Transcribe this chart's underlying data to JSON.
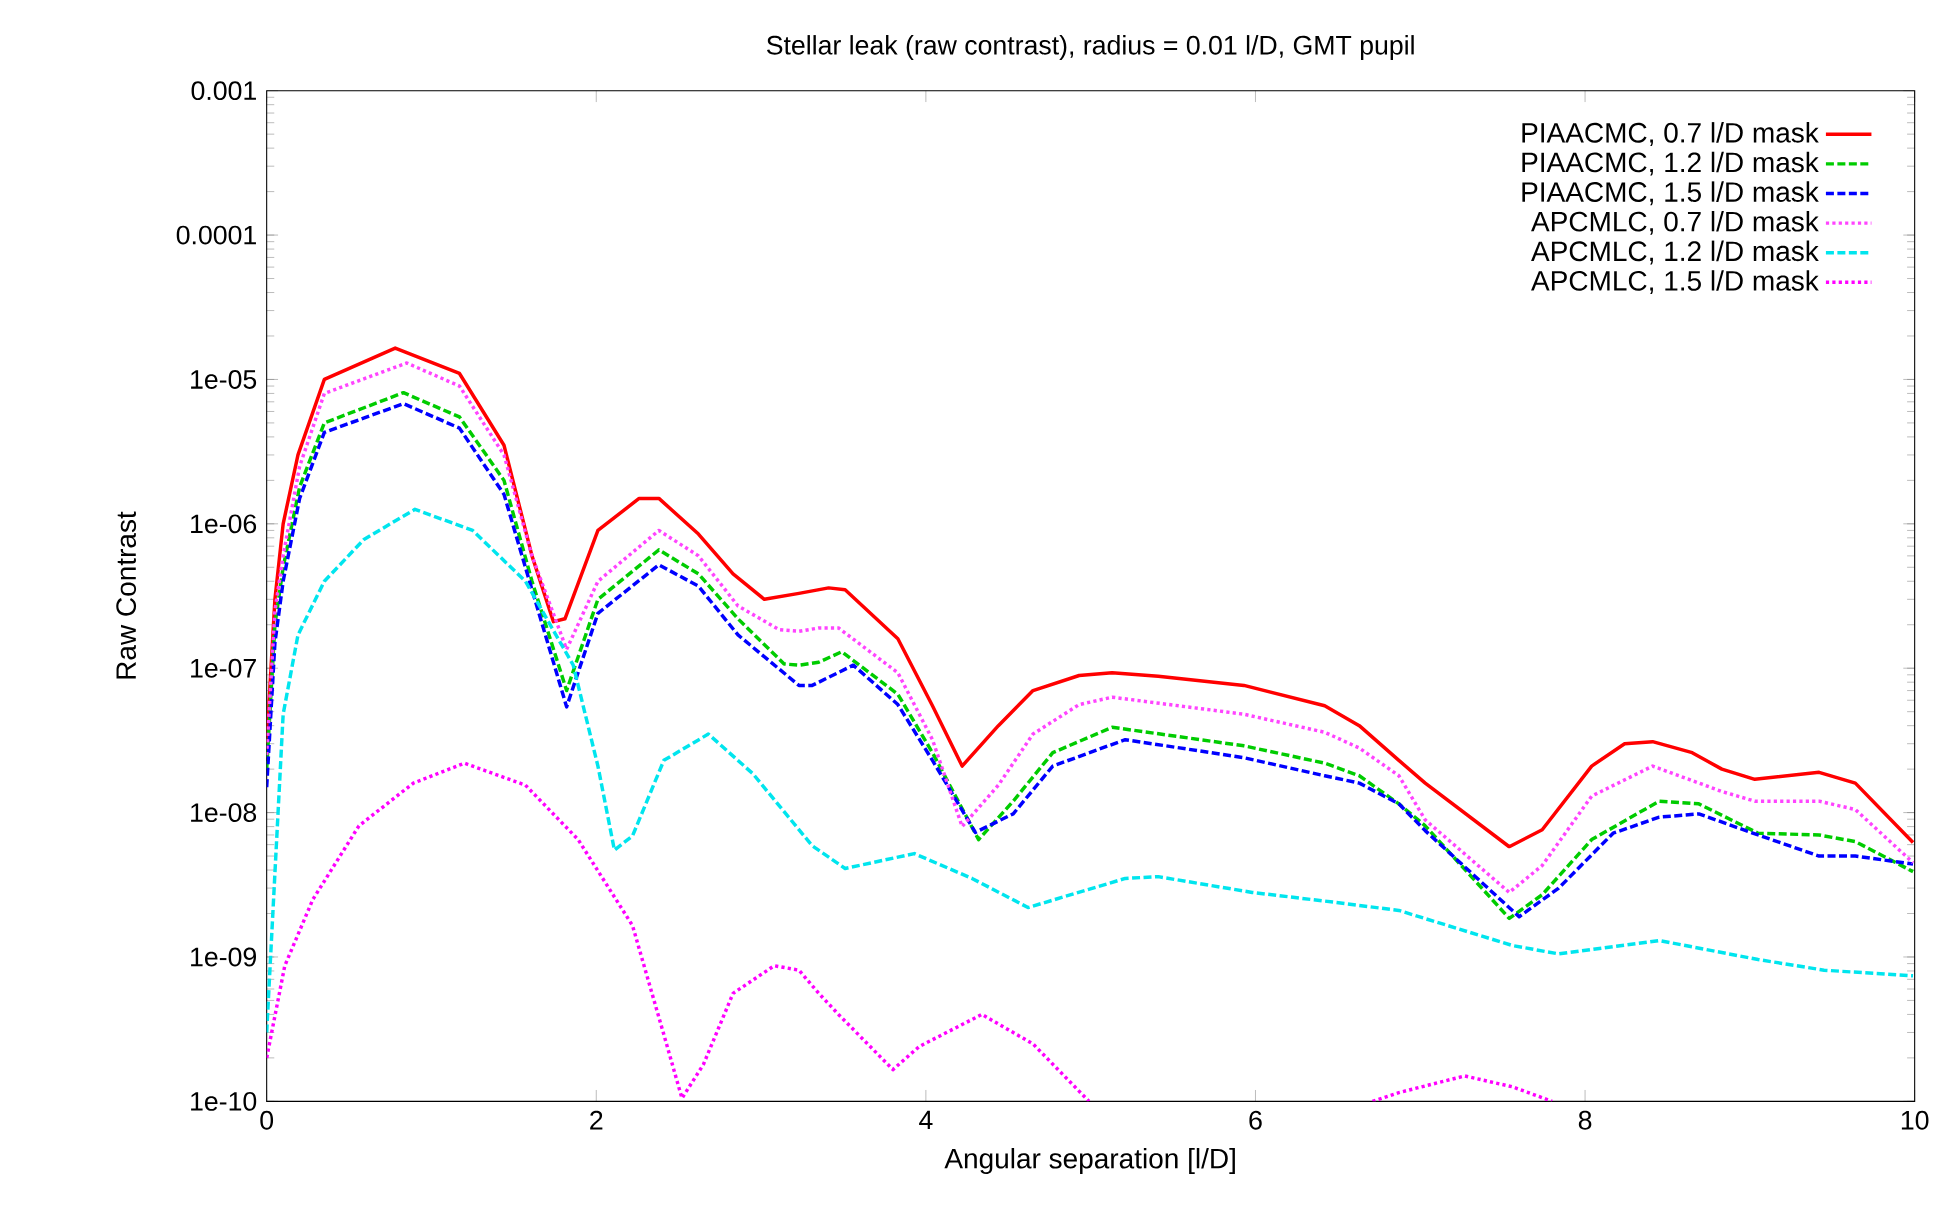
{
  "chart_data": {
    "type": "line",
    "title": "Stellar leak (raw contrast), radius = 0.01 l/D, GMT pupil",
    "xlabel": "Angular separation [l/D]",
    "ylabel": "Raw Contrast",
    "log": "y",
    "legend": "top right",
    "xlim": [
      0,
      10
    ],
    "ylim": [
      1e-10,
      0.001
    ],
    "xticks": [
      0,
      2,
      4,
      6,
      8,
      10
    ],
    "yticks": [
      {
        "value": 1e-10,
        "label": "1e-10"
      },
      {
        "value": 1e-09,
        "label": "1e-09"
      },
      {
        "value": 1e-08,
        "label": "1e-08"
      },
      {
        "value": 1e-07,
        "label": "1e-07"
      },
      {
        "value": 1e-06,
        "label": "1e-06"
      },
      {
        "value": 1e-05,
        "label": "1e-05"
      },
      {
        "value": 0.0001,
        "label": "0.0001"
      },
      {
        "value": 0.001,
        "label": "0.001"
      }
    ],
    "series": [
      {
        "name": "PIAACMC, 0.7 l/D mask",
        "color": "#ff0000",
        "line_style": "solid",
        "x": [
          0,
          0.05,
          0.1,
          0.19,
          0.35,
          0.78,
          1.17,
          1.44,
          1.61,
          1.74,
          1.81,
          2.01,
          2.26,
          2.38,
          2.62,
          2.83,
          3.02,
          3.23,
          3.41,
          3.51,
          3.83,
          4.04,
          4.22,
          4.44,
          4.65,
          4.93,
          5.13,
          5.41,
          5.93,
          6.42,
          6.63,
          6.87,
          7.03,
          7.54,
          7.74,
          8.04,
          8.24,
          8.41,
          8.65,
          8.83,
          9.03,
          9.42,
          9.64,
          9.99
        ],
        "values": [
          3e-08,
          3e-07,
          1e-06,
          3e-06,
          1e-05,
          1.65e-05,
          1.1e-05,
          3.5e-06,
          6e-07,
          2.1e-07,
          2.2e-07,
          9e-07,
          1.5e-06,
          1.5e-06,
          8.5e-07,
          4.5e-07,
          3e-07,
          3.3e-07,
          3.6e-07,
          3.5e-07,
          1.6e-07,
          5.5e-08,
          2.1e-08,
          4e-08,
          7e-08,
          8.9e-08,
          9.3e-08,
          8.8e-08,
          7.6e-08,
          5.5e-08,
          4e-08,
          2.3e-08,
          1.6e-08,
          5.8e-09,
          7.6e-09,
          2.1e-08,
          3e-08,
          3.1e-08,
          2.6e-08,
          2e-08,
          1.7e-08,
          1.9e-08,
          1.6e-08,
          6.2e-09
        ]
      },
      {
        "name": "PIAACMC, 1.2 l/D mask",
        "color": "#00cc00",
        "line_style": "dashed",
        "x": [
          0,
          0.05,
          0.1,
          0.2,
          0.35,
          0.83,
          1.17,
          1.44,
          1.61,
          1.82,
          2.01,
          2.38,
          2.62,
          2.86,
          3.14,
          3.23,
          3.35,
          3.49,
          3.83,
          4.04,
          4.32,
          4.53,
          4.77,
          5.13,
          5.93,
          6.42,
          6.63,
          6.87,
          7.03,
          7.54,
          7.74,
          8.04,
          8.45,
          8.69,
          9.05,
          9.42,
          9.64,
          9.99
        ],
        "values": [
          2e-08,
          2e-07,
          5e-07,
          1.8e-06,
          5e-06,
          8.1e-06,
          5.5e-06,
          2e-06,
          4e-07,
          7e-08,
          3e-07,
          6.6e-07,
          4.5e-07,
          2.2e-07,
          1.07e-07,
          1.05e-07,
          1.1e-07,
          1.3e-07,
          6.6e-08,
          2.6e-08,
          6.5e-09,
          1.2e-08,
          2.6e-08,
          3.9e-08,
          2.9e-08,
          2.2e-08,
          1.8e-08,
          1.15e-08,
          8.1e-09,
          1.85e-09,
          2.7e-09,
          6.5e-09,
          1.2e-08,
          1.15e-08,
          7.2e-09,
          7e-09,
          6.3e-09,
          3.9e-09
        ]
      },
      {
        "name": "PIAACMC, 1.5 l/D mask",
        "color": "#0000ff",
        "line_style": "dashed",
        "x": [
          0,
          0.05,
          0.1,
          0.2,
          0.35,
          0.83,
          1.17,
          1.44,
          1.61,
          1.82,
          2.01,
          2.38,
          2.62,
          2.86,
          3.23,
          3.31,
          3.56,
          3.83,
          4.04,
          4.3,
          4.53,
          4.77,
          5.21,
          5.93,
          6.42,
          6.63,
          6.87,
          7.03,
          7.6,
          7.84,
          8.17,
          8.45,
          8.69,
          9.05,
          9.42,
          9.64,
          9.99
        ],
        "values": [
          1.5e-08,
          1.5e-07,
          4e-07,
          1.5e-06,
          4.3e-06,
          6.8e-06,
          4.6e-06,
          1.6e-06,
          3.5e-07,
          5.4e-08,
          2.4e-07,
          5.2e-07,
          3.7e-07,
          1.7e-07,
          7.6e-08,
          7.6e-08,
          1.05e-07,
          5.6e-08,
          2.3e-08,
          7.3e-09,
          9.8e-09,
          2.1e-08,
          3.2e-08,
          2.4e-08,
          1.8e-08,
          1.6e-08,
          1.15e-08,
          7.5e-09,
          1.9e-09,
          3e-09,
          7.2e-09,
          9.3e-09,
          9.8e-09,
          7e-09,
          5e-09,
          5e-09,
          4.4e-09
        ]
      },
      {
        "name": "APCMLC, 0.7 l/D mask",
        "color": "#ff44ff",
        "line_style": "dotted",
        "x": [
          0,
          0.05,
          0.1,
          0.2,
          0.35,
          0.85,
          1.17,
          1.44,
          1.61,
          1.82,
          2.01,
          2.38,
          2.62,
          2.86,
          3.11,
          3.23,
          3.35,
          3.47,
          3.83,
          4.04,
          4.22,
          4.44,
          4.65,
          4.93,
          5.13,
          5.93,
          6.42,
          6.63,
          6.87,
          7.03,
          7.54,
          7.74,
          8.04,
          8.41,
          8.83,
          9.03,
          9.42,
          9.64,
          9.99
        ],
        "values": [
          2.5e-08,
          2.5e-07,
          6e-07,
          2.5e-06,
          8e-06,
          1.3e-05,
          9e-06,
          3e-06,
          6e-07,
          1.35e-07,
          4e-07,
          9e-07,
          6e-07,
          2.7e-07,
          1.85e-07,
          1.8e-07,
          1.9e-07,
          1.9e-07,
          9.3e-08,
          3.2e-08,
          8e-09,
          1.55e-08,
          3.5e-08,
          5.6e-08,
          6.3e-08,
          4.8e-08,
          3.6e-08,
          2.8e-08,
          1.8e-08,
          8.9e-09,
          2.8e-09,
          4.3e-09,
          1.3e-08,
          2.1e-08,
          1.4e-08,
          1.2e-08,
          1.2e-08,
          1.05e-08,
          4.5e-09
        ]
      },
      {
        "name": "APCMLC, 1.2 l/D mask",
        "color": "#00e5ee",
        "line_style": "dashed",
        "x": [
          0,
          0.1,
          0.19,
          0.35,
          0.59,
          0.9,
          1.25,
          1.57,
          1.86,
          2.01,
          2.11,
          2.22,
          2.41,
          2.68,
          2.95,
          3.31,
          3.51,
          3.93,
          4.28,
          4.62,
          5.21,
          5.41,
          5.98,
          6.47,
          6.87,
          7.56,
          7.84,
          8.45,
          9.05,
          9.45,
          9.99
        ],
        "values": [
          3e-10,
          4.8e-08,
          1.7e-07,
          4e-07,
          7.8e-07,
          1.26e-06,
          9e-07,
          4e-07,
          1.05e-07,
          2.1e-08,
          5.5e-09,
          6.9e-09,
          2.3e-08,
          3.5e-08,
          1.86e-08,
          5.9e-09,
          4.1e-09,
          5.2e-09,
          3.5e-09,
          2.2e-09,
          3.5e-09,
          3.6e-09,
          2.8e-09,
          2.4e-09,
          2.1e-09,
          1.2e-09,
          1.05e-09,
          1.3e-09,
          9.6e-10,
          8.1e-10,
          7.4e-10
        ]
      },
      {
        "name": "APCMLC, 1.5 l/D mask",
        "color": "#ff00ff",
        "line_style": "dotted",
        "x": [
          0,
          0.11,
          0.28,
          0.56,
          0.89,
          1.2,
          1.57,
          1.89,
          2.22,
          2.41,
          2.52,
          2.65,
          2.83,
          3.08,
          3.23,
          3.35,
          3.47,
          3.8,
          3.96,
          4.34,
          4.65,
          4.99,
          5.8,
          6.71,
          6.87,
          7.27,
          7.56,
          7.8
        ],
        "values": [
          2e-10,
          8.7e-10,
          2.5e-09,
          8.1e-09,
          1.6e-08,
          2.2e-08,
          1.55e-08,
          6.5e-09,
          1.65e-09,
          2.9e-10,
          1.05e-10,
          1.8e-10,
          5.6e-10,
          8.7e-10,
          8.1e-10,
          5.6e-10,
          4e-10,
          1.66e-10,
          2.4e-10,
          4e-10,
          2.5e-10,
          1e-10,
          null,
          1e-10,
          1.15e-10,
          1.5e-10,
          1.26e-10,
          1e-10
        ]
      }
    ]
  }
}
